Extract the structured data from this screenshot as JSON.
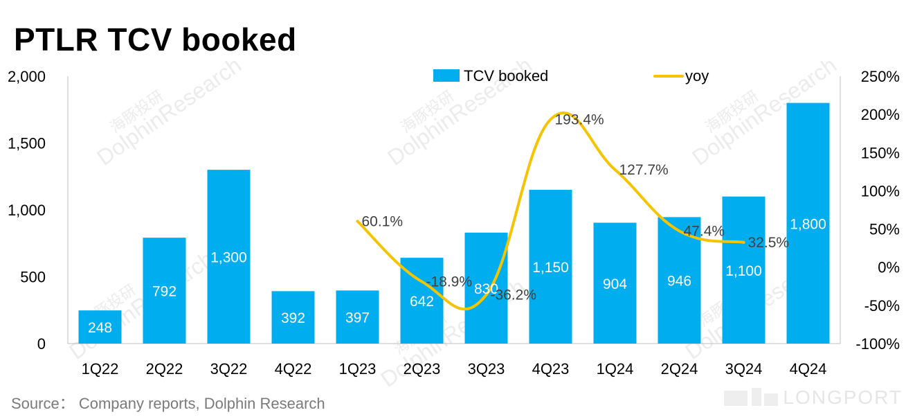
{
  "title": "PTLR TCV booked",
  "source": "Source： Company reports, Dolphin Research",
  "brand": "LONGPORT",
  "watermarks": [
    "海豚投研",
    "DolphinResearch"
  ],
  "colors": {
    "bar": "#00AEEF",
    "line": "#F5C400",
    "axis": "#bfbfbf",
    "bar_label": "#ffffff",
    "line_label": "#404040"
  },
  "chart_data": {
    "type": "bar+line",
    "categories": [
      "1Q22",
      "2Q22",
      "3Q22",
      "4Q22",
      "1Q23",
      "2Q23",
      "3Q23",
      "4Q23",
      "1Q24",
      "2Q24",
      "3Q24",
      "4Q24"
    ],
    "series": [
      {
        "name": "TCV booked",
        "type": "bar",
        "axis": "left",
        "values": [
          248,
          792,
          1300,
          392,
          397,
          642,
          830,
          1150,
          904,
          946,
          1100,
          1800
        ],
        "labels": [
          "248",
          "792",
          "1,300",
          "392",
          "397",
          "642",
          "830",
          "1,150",
          "904",
          "946",
          "1,100",
          "1,800"
        ]
      },
      {
        "name": "yoy",
        "type": "line",
        "axis": "right",
        "values": [
          null,
          null,
          null,
          null,
          60.1,
          -18.9,
          -36.2,
          193.4,
          127.7,
          47.4,
          32.5,
          null
        ],
        "labels": [
          null,
          null,
          null,
          null,
          "60.1%",
          "-18.9%",
          "-36.2%",
          "193.4%",
          "127.7%",
          "47.4%",
          "32.5%",
          null
        ]
      }
    ],
    "y_left": {
      "ylim": [
        0,
        2000
      ],
      "ticks": [
        0,
        500,
        1000,
        1500,
        2000
      ],
      "tick_labels": [
        "0",
        "500",
        "1,000",
        "1,500",
        "2,000"
      ]
    },
    "y_right": {
      "ylim": [
        -100,
        250
      ],
      "ticks": [
        -100,
        -50,
        0,
        50,
        100,
        150,
        200,
        250
      ],
      "tick_labels": [
        "-100%",
        "-50%",
        "0%",
        "50%",
        "100%",
        "150%",
        "200%",
        "250%"
      ]
    },
    "legend": {
      "position": "top-center",
      "entries": [
        "TCV booked",
        "yoy"
      ]
    },
    "grid": false
  }
}
